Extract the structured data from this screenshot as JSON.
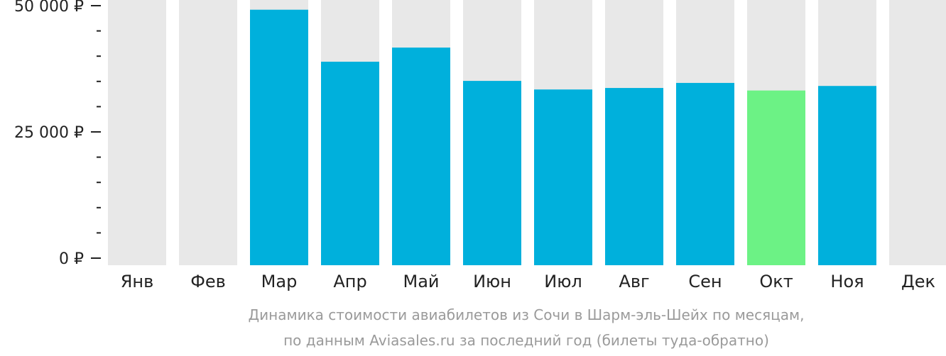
{
  "chart_data": {
    "type": "bar",
    "categories": [
      "Янв",
      "Фев",
      "Мар",
      "Апр",
      "Май",
      "Июн",
      "Июл",
      "Авг",
      "Сен",
      "Окт",
      "Ноя",
      "Дек"
    ],
    "values": [
      null,
      null,
      49200,
      38900,
      41700,
      35100,
      33400,
      33700,
      34700,
      33200,
      34100,
      null
    ],
    "ylim": [
      0,
      52000
    ],
    "y_ticks": [
      {
        "value": 0,
        "label": "0 ₽"
      },
      {
        "value": 25000,
        "label": "25 000 ₽"
      },
      {
        "value": 50000,
        "label": "50 000 ₽"
      }
    ],
    "y_minor_step": 5000,
    "highlight_index": 9,
    "colors": {
      "bar": "#00b0dc",
      "highlight": "#6cf285",
      "background_bar": "#e8e8e8",
      "axis": "#222222"
    },
    "title": "",
    "xlabel": "",
    "ylabel": ""
  },
  "caption": {
    "line1": "Динамика стоимости авиабилетов из Сочи в Шарм-эль-Шейх по месяцам,",
    "line2": "по данным Aviasales.ru за последний год (билеты туда-обратно)"
  }
}
